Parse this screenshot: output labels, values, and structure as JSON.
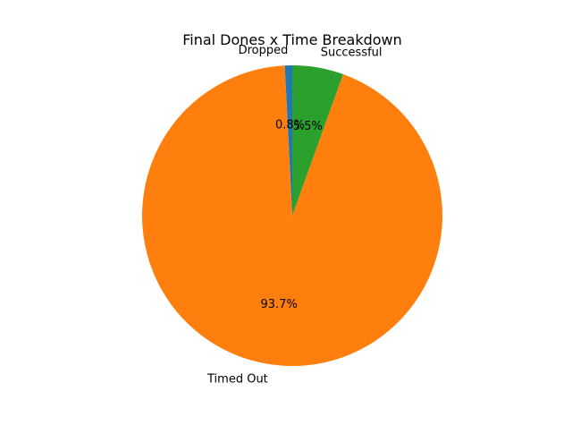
{
  "chart_data": {
    "type": "pie",
    "title": "Final Dones x Time Breakdown",
    "slices": [
      {
        "label": "Dropped",
        "value": 0.8,
        "percent_label": "0.8%",
        "color": "#1f77b4"
      },
      {
        "label": "Timed Out",
        "value": 93.7,
        "percent_label": "93.7%",
        "color": "#ff7f0e"
      },
      {
        "label": "Successful",
        "value": 5.5,
        "percent_label": "5.5%",
        "color": "#2ca02c"
      }
    ],
    "start_angle_deg": 90,
    "direction": "counterclockwise",
    "legend": "none"
  }
}
